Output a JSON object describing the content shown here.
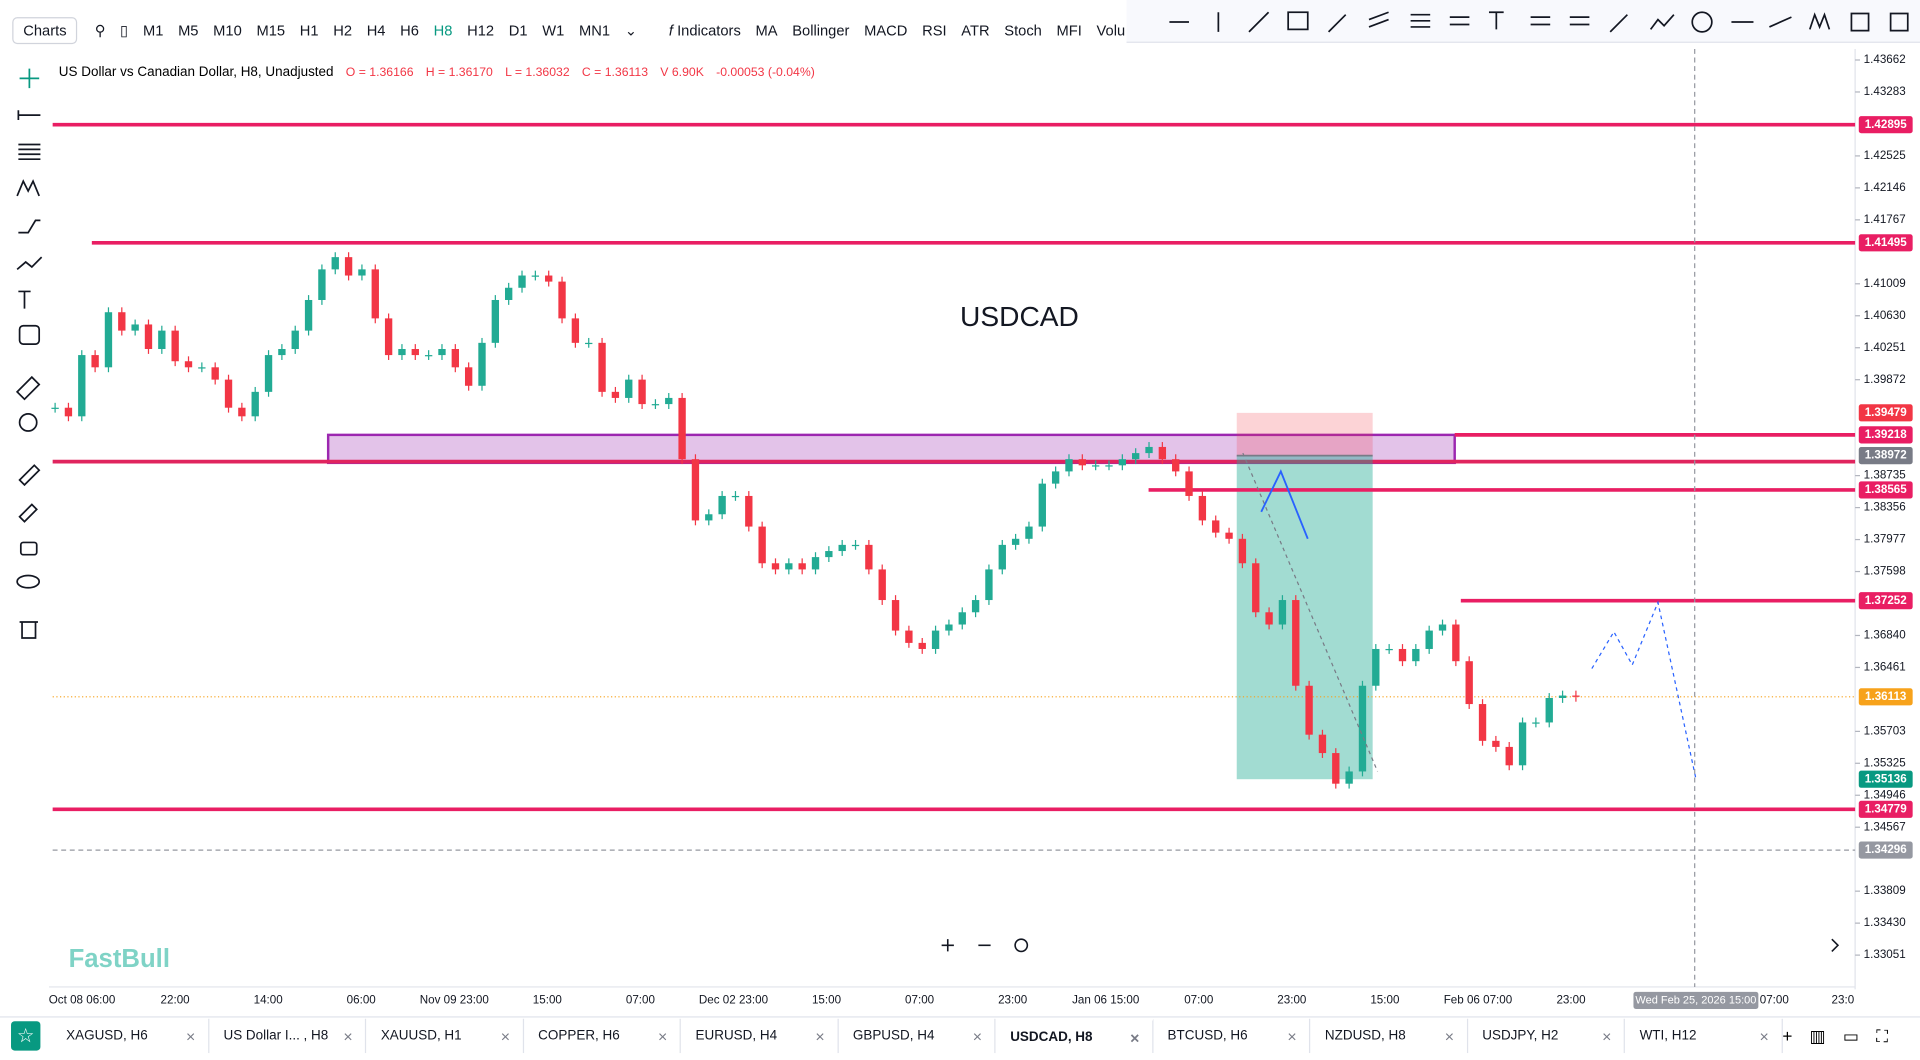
{
  "toolbar": {
    "charts": "Charts",
    "timeframes": [
      "M1",
      "M5",
      "M10",
      "M15",
      "H1",
      "H2",
      "H4",
      "H6",
      "H8",
      "H12",
      "D1",
      "W1",
      "MN1"
    ],
    "indicators": "Indicators",
    "indicator_list": [
      "MA",
      "Bollinger",
      "MACD",
      "RSI",
      "ATR",
      "Stoch",
      "MFI",
      "Volu"
    ]
  },
  "legend": {
    "symbol": "US Dollar vs Canadian Dollar, H8, Unadjusted",
    "open": "O = 1.36166",
    "high": "H = 1.36170",
    "low": "L = 1.36032",
    "close": "C = 1.36113",
    "volume": "V 6.90K",
    "change": "-0.00053 (-0.04%)"
  },
  "chart": {
    "annotation": "USDCAD",
    "watermark": "FastBull",
    "closes": [
      1.3954,
      1.39438,
      1.40164,
      1.40019,
      1.40672,
      1.40454,
      1.40527,
      1.40236,
      1.40454,
      1.40091,
      1.40019,
      1.40019,
      1.39873,
      1.3954,
      1.39438,
      1.39728,
      1.40164,
      1.40236,
      1.40454,
      1.40817,
      1.4118,
      1.41325,
      1.41107,
      1.4118,
      1.40599,
      1.40164,
      1.40236,
      1.40164,
      1.40164,
      1.40236,
      1.40019,
      1.398,
      1.40309,
      1.40817,
      1.40962,
      1.41107,
      1.41107,
      1.41035,
      1.40599,
      1.40309,
      1.40309,
      1.39728,
      1.39656,
      1.39873,
      1.39583,
      1.39583,
      1.39656,
      1.3893,
      1.38204,
      1.38277,
      1.38494,
      1.38494,
      1.38131,
      1.37696,
      1.37623,
      1.37696,
      1.37623,
      1.37769,
      1.37841,
      1.37914,
      1.37914,
      1.37623,
      1.3726,
      1.36898,
      1.36752,
      1.3668,
      1.36898,
      1.3697,
      1.37115,
      1.3726,
      1.37623,
      1.37914,
      1.37986,
      1.38131,
      1.3864,
      1.38785,
      1.3893,
      1.38857,
      1.38857,
      1.38857,
      1.3893,
      1.39002,
      1.39075,
      1.3893,
      1.38785,
      1.38494,
      1.38204,
      1.38059,
      1.37986,
      1.37696,
      1.37115,
      1.3697,
      1.3726,
      1.36244,
      1.35664,
      1.35446,
      1.35083,
      1.35228,
      1.36244,
      1.3668,
      1.3668,
      1.36535,
      1.3668,
      1.36898,
      1.3697,
      1.36535,
      1.36027,
      1.35591,
      1.35519,
      1.35301,
      1.35809,
      1.35809,
      1.36099,
      1.36128,
      1.36113
    ],
    "price_ticks": [
      1.43662,
      1.43283,
      1.42525,
      1.42146,
      1.41767,
      1.41009,
      {
        "value": 1.4063,
        "label": "1.40630"
      },
      1.40251,
      1.39872,
      1.38735,
      1.38356,
      1.37977,
      1.37598,
      {
        "value": 1.3684,
        "label": "1.36840"
      },
      1.36461,
      1.35703,
      1.35325,
      1.34946,
      1.34567,
      1.33809,
      {
        "value": 1.3343,
        "label": "1.33430"
      },
      1.33051
    ],
    "levels": [
      {
        "price": 1.42895,
        "color": "#e91e63",
        "style": "solid"
      },
      {
        "price": 1.41495,
        "color": "#e91e63",
        "style": "solid"
      },
      {
        "price": 1.39479,
        "color": "#f23645",
        "style": "none"
      },
      {
        "price": 1.39218,
        "color": "#e91e63",
        "style": "solid"
      },
      {
        "price": 1.38972,
        "color": "#787b86",
        "style": "none"
      },
      {
        "price": 1.38565,
        "color": "#e91e63",
        "style": "solid"
      },
      {
        "price": 1.37252,
        "color": "#e91e63",
        "style": "solid"
      },
      {
        "price": 1.36113,
        "color": "#f7a21b",
        "style": "dotted"
      },
      {
        "price": 1.35136,
        "color": "#089981",
        "style": "none"
      },
      {
        "price": 1.34779,
        "color": "#e91e63",
        "style": "solid"
      },
      {
        "price": 1.34296,
        "color": "#9598a1",
        "style": "dashed"
      }
    ],
    "time_labels": [
      "Oct 08 06:00",
      "22:00",
      "14:00",
      "06:00",
      "Nov 09 23:00",
      "15:00",
      "07:00",
      "Dec 02 23:00",
      "15:00",
      "07:00",
      "23:00",
      "Jan 06 15:00",
      "07:00",
      "23:00",
      "15:00",
      "Feb 06 07:00",
      "23:00",
      "07:00",
      "23:0"
    ],
    "crosshair_time": "Wed Feb 25, 2026 15:00"
  },
  "tabs": [
    "XAGUSD, H6",
    "US Dollar I... , H8",
    "XAUUSD, H1",
    "COPPER, H6",
    "EURUSD, H4",
    "GBPUSD, H4",
    "USDCAD, H8",
    "BTCUSD, H6",
    "NZDUSD, H8",
    "USDJPY, H2",
    "WTI, H12"
  ]
}
